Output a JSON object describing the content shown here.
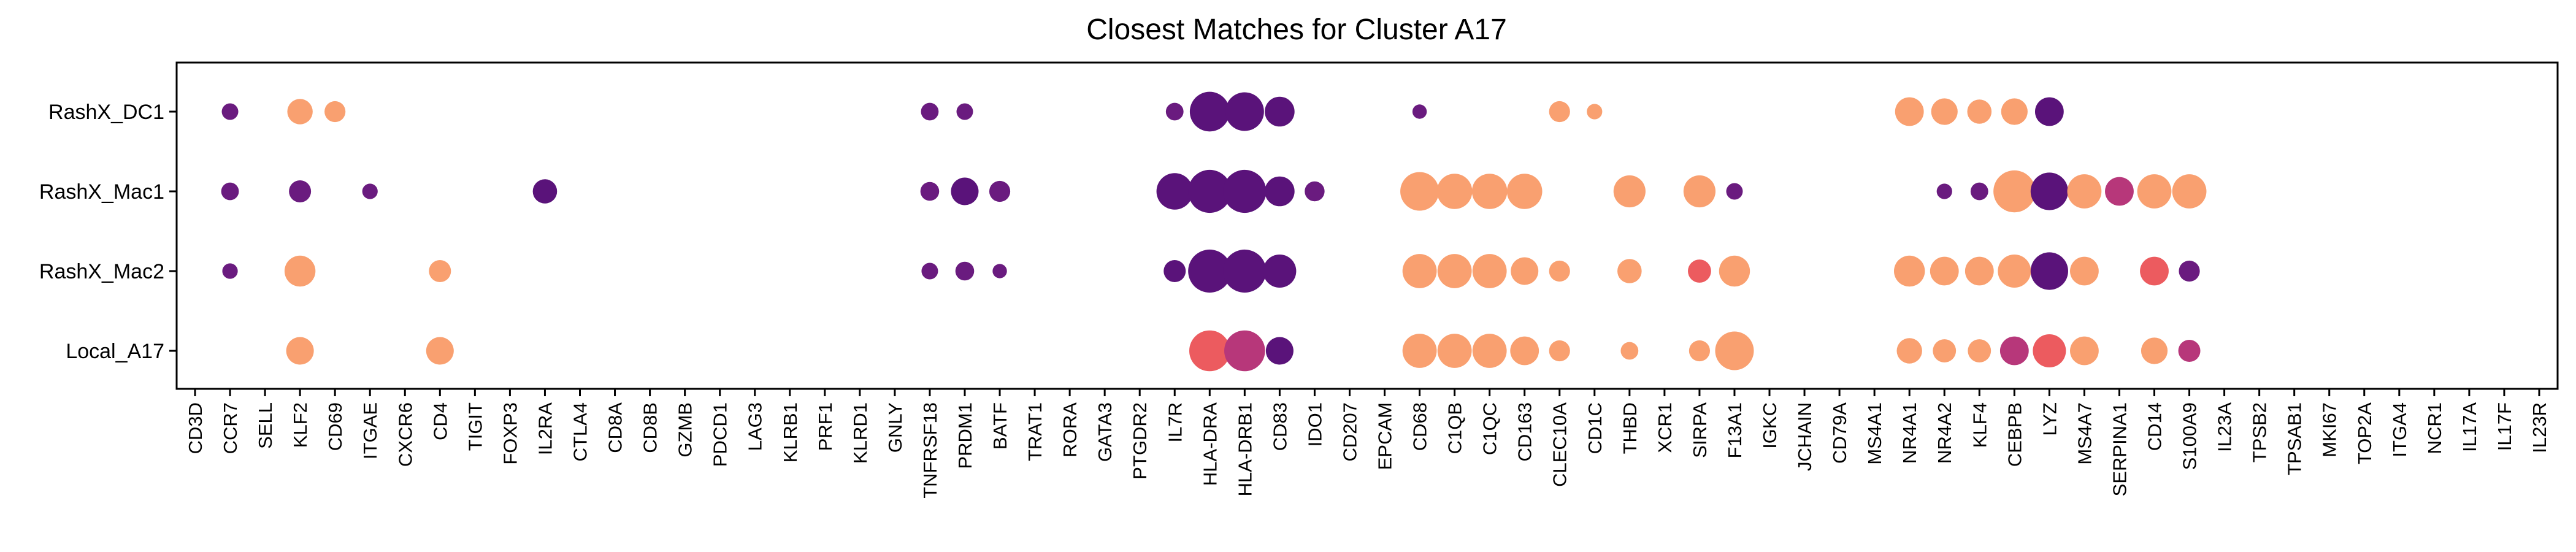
{
  "chart_data": {
    "type": "dotplot",
    "title": "Closest Matches for Cluster A17",
    "xlabel": "",
    "ylabel": "",
    "rows": [
      "RashX_DC1",
      "RashX_Mac1",
      "RashX_Mac2",
      "Local_A17"
    ],
    "genes": [
      "CD3D",
      "CCR7",
      "SELL",
      "KLF2",
      "CD69",
      "ITGAE",
      "CXCR6",
      "CD4",
      "TIGIT",
      "FOXP3",
      "IL2RA",
      "CTLA4",
      "CD8A",
      "CD8B",
      "GZMB",
      "PDCD1",
      "LAG3",
      "KLRB1",
      "PRF1",
      "KLRD1",
      "GNLY",
      "TNFRSF18",
      "PRDM1",
      "BATF",
      "TRAT1",
      "RORA",
      "GATA3",
      "PTGDR2",
      "IL7R",
      "HLA-DRA",
      "HLA-DRB1",
      "CD83",
      "IDO1",
      "CD207",
      "EPCAM",
      "CD68",
      "C1QB",
      "C1QC",
      "CD163",
      "CLEC10A",
      "CD1C",
      "THBD",
      "XCR1",
      "SIRPA",
      "F13A1",
      "IGKC",
      "JCHAIN",
      "CD79A",
      "MS4A1",
      "NR4A1",
      "NR4A2",
      "KLF4",
      "CEBPB",
      "LYZ",
      "MS4A7",
      "SERPINA1",
      "CD14",
      "S100A9",
      "IL23A",
      "TPSB2",
      "TPSAB1",
      "MKI67",
      "TOP2A",
      "ITGA4",
      "NCR1",
      "IL17A",
      "IL17F",
      "IL23R"
    ],
    "dots": [
      {
        "row": "RashX_DC1",
        "gene": "CCR7",
        "size": 1.5,
        "color": "#6a1b7f"
      },
      {
        "row": "RashX_DC1",
        "gene": "KLF2",
        "size": 2.3,
        "color": "#f9a070"
      },
      {
        "row": "RashX_DC1",
        "gene": "CD69",
        "size": 1.9,
        "color": "#f9a070"
      },
      {
        "row": "RashX_DC1",
        "gene": "TNFRSF18",
        "size": 1.6,
        "color": "#6a1b7f"
      },
      {
        "row": "RashX_DC1",
        "gene": "PRDM1",
        "size": 1.5,
        "color": "#6a1b7f"
      },
      {
        "row": "RashX_DC1",
        "gene": "IL7R",
        "size": 1.6,
        "color": "#6a1b7f"
      },
      {
        "row": "RashX_DC1",
        "gene": "HLA-DRA",
        "size": 3.6,
        "color": "#5a137a"
      },
      {
        "row": "RashX_DC1",
        "gene": "HLA-DRB1",
        "size": 3.5,
        "color": "#5a137a"
      },
      {
        "row": "RashX_DC1",
        "gene": "CD83",
        "size": 2.7,
        "color": "#5a137a"
      },
      {
        "row": "RashX_DC1",
        "gene": "CD68",
        "size": 1.3,
        "color": "#6a1b7f"
      },
      {
        "row": "RashX_DC1",
        "gene": "CLEC10A",
        "size": 1.9,
        "color": "#f9a070"
      },
      {
        "row": "RashX_DC1",
        "gene": "CD1C",
        "size": 1.4,
        "color": "#f9a070"
      },
      {
        "row": "RashX_DC1",
        "gene": "NR4A1",
        "size": 2.6,
        "color": "#f9a070"
      },
      {
        "row": "RashX_DC1",
        "gene": "NR4A2",
        "size": 2.4,
        "color": "#f9a070"
      },
      {
        "row": "RashX_DC1",
        "gene": "KLF4",
        "size": 2.2,
        "color": "#f9a070"
      },
      {
        "row": "RashX_DC1",
        "gene": "CEBPB",
        "size": 2.4,
        "color": "#f9a070"
      },
      {
        "row": "RashX_DC1",
        "gene": "LYZ",
        "size": 2.6,
        "color": "#5a137a"
      },
      {
        "row": "RashX_Mac1",
        "gene": "CCR7",
        "size": 1.6,
        "color": "#6a1b7f"
      },
      {
        "row": "RashX_Mac1",
        "gene": "KLF2",
        "size": 2.0,
        "color": "#6a1b7f"
      },
      {
        "row": "RashX_Mac1",
        "gene": "ITGAE",
        "size": 1.4,
        "color": "#6a1b7f"
      },
      {
        "row": "RashX_Mac1",
        "gene": "IL2RA",
        "size": 2.2,
        "color": "#5a137a"
      },
      {
        "row": "RashX_Mac1",
        "gene": "TNFRSF18",
        "size": 1.7,
        "color": "#6a1b7f"
      },
      {
        "row": "RashX_Mac1",
        "gene": "PRDM1",
        "size": 2.5,
        "color": "#5a137a"
      },
      {
        "row": "RashX_Mac1",
        "gene": "BATF",
        "size": 1.9,
        "color": "#6a1b7f"
      },
      {
        "row": "RashX_Mac1",
        "gene": "IL7R",
        "size": 3.3,
        "color": "#5a137a"
      },
      {
        "row": "RashX_Mac1",
        "gene": "HLA-DRA",
        "size": 3.9,
        "color": "#5a137a"
      },
      {
        "row": "RashX_Mac1",
        "gene": "HLA-DRB1",
        "size": 3.9,
        "color": "#5a137a"
      },
      {
        "row": "RashX_Mac1",
        "gene": "CD83",
        "size": 2.7,
        "color": "#5a137a"
      },
      {
        "row": "RashX_Mac1",
        "gene": "IDO1",
        "size": 1.8,
        "color": "#6a1b7f"
      },
      {
        "row": "RashX_Mac1",
        "gene": "CD68",
        "size": 3.5,
        "color": "#f9a070"
      },
      {
        "row": "RashX_Mac1",
        "gene": "C1QB",
        "size": 3.2,
        "color": "#f9a070"
      },
      {
        "row": "RashX_Mac1",
        "gene": "C1QC",
        "size": 3.2,
        "color": "#f9a070"
      },
      {
        "row": "RashX_Mac1",
        "gene": "CD163",
        "size": 3.2,
        "color": "#f9a070"
      },
      {
        "row": "RashX_Mac1",
        "gene": "THBD",
        "size": 2.9,
        "color": "#f9a070"
      },
      {
        "row": "RashX_Mac1",
        "gene": "SIRPA",
        "size": 2.9,
        "color": "#f9a070"
      },
      {
        "row": "RashX_Mac1",
        "gene": "F13A1",
        "size": 1.5,
        "color": "#6a1b7f"
      },
      {
        "row": "RashX_Mac1",
        "gene": "NR4A2",
        "size": 1.4,
        "color": "#6a1b7f"
      },
      {
        "row": "RashX_Mac1",
        "gene": "KLF4",
        "size": 1.6,
        "color": "#6a1b7f"
      },
      {
        "row": "RashX_Mac1",
        "gene": "CEBPB",
        "size": 3.8,
        "color": "#f9a070"
      },
      {
        "row": "RashX_Mac1",
        "gene": "LYZ",
        "size": 3.4,
        "color": "#5a137a"
      },
      {
        "row": "RashX_Mac1",
        "gene": "MS4A7",
        "size": 3.1,
        "color": "#f9a070"
      },
      {
        "row": "RashX_Mac1",
        "gene": "SERPINA1",
        "size": 2.6,
        "color": "#b7377a"
      },
      {
        "row": "RashX_Mac1",
        "gene": "CD14",
        "size": 3.1,
        "color": "#f9a070"
      },
      {
        "row": "RashX_Mac1",
        "gene": "S100A9",
        "size": 3.1,
        "color": "#f9a070"
      },
      {
        "row": "RashX_Mac2",
        "gene": "CCR7",
        "size": 1.4,
        "color": "#6a1b7f"
      },
      {
        "row": "RashX_Mac2",
        "gene": "KLF2",
        "size": 2.8,
        "color": "#f9a070"
      },
      {
        "row": "RashX_Mac2",
        "gene": "CD4",
        "size": 2.0,
        "color": "#f9a070"
      },
      {
        "row": "RashX_Mac2",
        "gene": "TNFRSF18",
        "size": 1.5,
        "color": "#6a1b7f"
      },
      {
        "row": "RashX_Mac2",
        "gene": "PRDM1",
        "size": 1.7,
        "color": "#6a1b7f"
      },
      {
        "row": "RashX_Mac2",
        "gene": "BATF",
        "size": 1.3,
        "color": "#6a1b7f"
      },
      {
        "row": "RashX_Mac2",
        "gene": "IL7R",
        "size": 2.0,
        "color": "#5a137a"
      },
      {
        "row": "RashX_Mac2",
        "gene": "HLA-DRA",
        "size": 3.9,
        "color": "#5a137a"
      },
      {
        "row": "RashX_Mac2",
        "gene": "HLA-DRB1",
        "size": 3.9,
        "color": "#5a137a"
      },
      {
        "row": "RashX_Mac2",
        "gene": "CD83",
        "size": 3.0,
        "color": "#5a137a"
      },
      {
        "row": "RashX_Mac2",
        "gene": "CD68",
        "size": 3.1,
        "color": "#f9a070"
      },
      {
        "row": "RashX_Mac2",
        "gene": "C1QB",
        "size": 3.1,
        "color": "#f9a070"
      },
      {
        "row": "RashX_Mac2",
        "gene": "C1QC",
        "size": 3.1,
        "color": "#f9a070"
      },
      {
        "row": "RashX_Mac2",
        "gene": "CD163",
        "size": 2.5,
        "color": "#f9a070"
      },
      {
        "row": "RashX_Mac2",
        "gene": "CLEC10A",
        "size": 1.9,
        "color": "#f9a070"
      },
      {
        "row": "RashX_Mac2",
        "gene": "THBD",
        "size": 2.2,
        "color": "#f9a070"
      },
      {
        "row": "RashX_Mac2",
        "gene": "SIRPA",
        "size": 2.1,
        "color": "#ec5b5f"
      },
      {
        "row": "RashX_Mac2",
        "gene": "F13A1",
        "size": 2.8,
        "color": "#f9a070"
      },
      {
        "row": "RashX_Mac2",
        "gene": "NR4A1",
        "size": 2.8,
        "color": "#f9a070"
      },
      {
        "row": "RashX_Mac2",
        "gene": "NR4A2",
        "size": 2.6,
        "color": "#f9a070"
      },
      {
        "row": "RashX_Mac2",
        "gene": "KLF4",
        "size": 2.6,
        "color": "#f9a070"
      },
      {
        "row": "RashX_Mac2",
        "gene": "CEBPB",
        "size": 3.0,
        "color": "#f9a070"
      },
      {
        "row": "RashX_Mac2",
        "gene": "LYZ",
        "size": 3.4,
        "color": "#5a137a"
      },
      {
        "row": "RashX_Mac2",
        "gene": "MS4A7",
        "size": 2.6,
        "color": "#f9a070"
      },
      {
        "row": "RashX_Mac2",
        "gene": "CD14",
        "size": 2.6,
        "color": "#ec5b5f"
      },
      {
        "row": "RashX_Mac2",
        "gene": "S100A9",
        "size": 1.9,
        "color": "#6a1b7f"
      },
      {
        "row": "Local_A17",
        "gene": "KLF2",
        "size": 2.5,
        "color": "#f9a070"
      },
      {
        "row": "Local_A17",
        "gene": "CD4",
        "size": 2.5,
        "color": "#f9a070"
      },
      {
        "row": "Local_A17",
        "gene": "HLA-DRA",
        "size": 3.7,
        "color": "#ec5b5f"
      },
      {
        "row": "Local_A17",
        "gene": "HLA-DRB1",
        "size": 3.7,
        "color": "#b7377a"
      },
      {
        "row": "Local_A17",
        "gene": "CD83",
        "size": 2.5,
        "color": "#5a137a"
      },
      {
        "row": "Local_A17",
        "gene": "CD68",
        "size": 3.1,
        "color": "#f9a070"
      },
      {
        "row": "Local_A17",
        "gene": "C1QB",
        "size": 3.1,
        "color": "#f9a070"
      },
      {
        "row": "Local_A17",
        "gene": "C1QC",
        "size": 3.1,
        "color": "#f9a070"
      },
      {
        "row": "Local_A17",
        "gene": "CD163",
        "size": 2.6,
        "color": "#f9a070"
      },
      {
        "row": "Local_A17",
        "gene": "CLEC10A",
        "size": 1.9,
        "color": "#f9a070"
      },
      {
        "row": "Local_A17",
        "gene": "THBD",
        "size": 1.6,
        "color": "#f9a070"
      },
      {
        "row": "Local_A17",
        "gene": "SIRPA",
        "size": 1.9,
        "color": "#f9a070"
      },
      {
        "row": "Local_A17",
        "gene": "F13A1",
        "size": 3.5,
        "color": "#f9a070"
      },
      {
        "row": "Local_A17",
        "gene": "NR4A1",
        "size": 2.3,
        "color": "#f9a070"
      },
      {
        "row": "Local_A17",
        "gene": "NR4A2",
        "size": 2.1,
        "color": "#f9a070"
      },
      {
        "row": "Local_A17",
        "gene": "KLF4",
        "size": 2.1,
        "color": "#f9a070"
      },
      {
        "row": "Local_A17",
        "gene": "CEBPB",
        "size": 2.6,
        "color": "#b7377a"
      },
      {
        "row": "Local_A17",
        "gene": "LYZ",
        "size": 3.0,
        "color": "#ec5b5f"
      },
      {
        "row": "Local_A17",
        "gene": "MS4A7",
        "size": 2.6,
        "color": "#f9a070"
      },
      {
        "row": "Local_A17",
        "gene": "CD14",
        "size": 2.4,
        "color": "#f9a070"
      },
      {
        "row": "Local_A17",
        "gene": "S100A9",
        "size": 2.0,
        "color": "#b7377a"
      }
    ],
    "grid": false,
    "legend": "none"
  }
}
